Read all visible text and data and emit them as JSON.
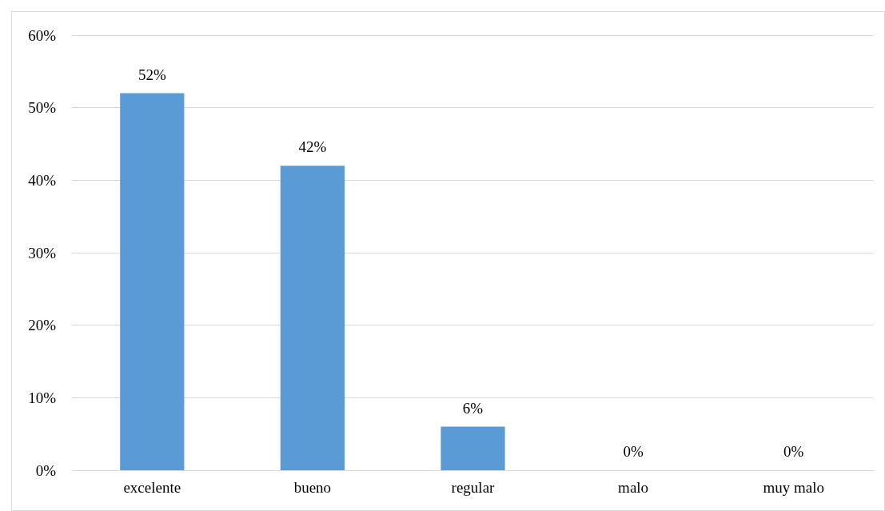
{
  "chart_data": {
    "type": "bar",
    "categories": [
      "excelente",
      "bueno",
      "regular",
      "malo",
      "muy malo"
    ],
    "values": [
      52,
      42,
      6,
      0,
      0
    ],
    "value_labels": [
      "52%",
      "42%",
      "6%",
      "0%",
      "0%"
    ],
    "color": "#5b9bd5",
    "ylim": [
      0,
      60
    ],
    "yticks": [
      {
        "value": 0,
        "label": "0%"
      },
      {
        "value": 10,
        "label": "10%"
      },
      {
        "value": 20,
        "label": "20%"
      },
      {
        "value": 30,
        "label": "30%"
      },
      {
        "value": 40,
        "label": "40%"
      },
      {
        "value": 50,
        "label": "50%"
      },
      {
        "value": 60,
        "label": "60%"
      }
    ],
    "grid": "y"
  }
}
